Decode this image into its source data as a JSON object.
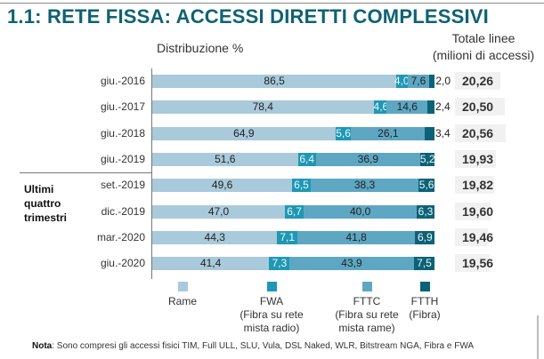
{
  "title": "1.1: RETE FISSA: ACCESSI DIRETTI COMPLESSIVI",
  "subtitle": "Distribuzione %",
  "totals_header": [
    "Totale linee",
    "(milioni di accessi)"
  ],
  "group_label": [
    "Ultimi",
    "quattro",
    "trimestri"
  ],
  "note_label": "Nota",
  "note_text": ": Sono compresi gli accessi fisici TIM, Full ULL, SLU, Vula, DSL Naked, WLR, Bitstream NGA, Fibra e FWA",
  "chart_data": {
    "type": "bar",
    "orientation": "horizontal",
    "stacked": true,
    "title": "1.1: RETE FISSA: ACCESSI DIRETTI COMPLESSIVI",
    "xlabel": "Distribuzione %",
    "ylabel": "",
    "xlim": [
      0,
      100
    ],
    "categories": [
      "giu.-2016",
      "giu.-2017",
      "giu.-2018",
      "giu.-2019",
      "set.-2019",
      "dic.-2019",
      "mar.-2020",
      "giu.-2020"
    ],
    "series": [
      {
        "name": "Rame",
        "color": "#a9cadb",
        "values": [
          86.5,
          78.4,
          64.9,
          51.6,
          49.6,
          47.0,
          44.3,
          41.4
        ],
        "labels": [
          "86,5",
          "78,4",
          "64,9",
          "51,6",
          "49,6",
          "47,0",
          "44,3",
          "41,4"
        ]
      },
      {
        "name": "FWA (Fibra su rete mista radio)",
        "color": "#1e98b5",
        "values": [
          4.0,
          4.6,
          5.6,
          6.4,
          6.5,
          6.7,
          7.1,
          7.3
        ],
        "labels": [
          "4,0",
          "4,6",
          "5,6",
          "6,4",
          "6,5",
          "6,7",
          "7,1",
          "7,3"
        ]
      },
      {
        "name": "FTTC (Fibra su rete mista rame)",
        "color": "#5ea7c3",
        "values": [
          7.6,
          14.6,
          26.1,
          36.9,
          38.3,
          40.0,
          41.8,
          43.9
        ],
        "labels": [
          "7,6",
          "14,6",
          "26,1",
          "36,9",
          "38,3",
          "40,0",
          "41,8",
          "43,9"
        ]
      },
      {
        "name": "FTTH (Fibra)",
        "color": "#0c6276",
        "values": [
          2.0,
          2.4,
          3.4,
          5.2,
          5.6,
          6.3,
          6.9,
          7.5
        ],
        "labels": [
          "2,0",
          "2,4",
          "3,4",
          "5,2",
          "5,6",
          "6,3",
          "6,9",
          "7,5"
        ]
      }
    ],
    "totals": {
      "label": "Totale linee (milioni di accessi)",
      "values": [
        20.26,
        20.5,
        20.56,
        19.93,
        19.82,
        19.6,
        19.46,
        19.56
      ],
      "labels": [
        "20,26",
        "20,50",
        "20,56",
        "19,93",
        "19,82",
        "19,60",
        "19,46",
        "19,56"
      ]
    },
    "legend": [
      {
        "name": "Rame",
        "lines": [
          "Rame"
        ]
      },
      {
        "name": "FWA",
        "lines": [
          "FWA",
          "(Fibra su rete",
          "mista radio)"
        ]
      },
      {
        "name": "FTTC",
        "lines": [
          "FTTC",
          "(Fibra su rete",
          "mista rame)"
        ]
      },
      {
        "name": "FTTH",
        "lines": [
          "FTTH",
          "(Fibra)"
        ]
      }
    ],
    "legend_position": "bottom",
    "grid": false
  }
}
